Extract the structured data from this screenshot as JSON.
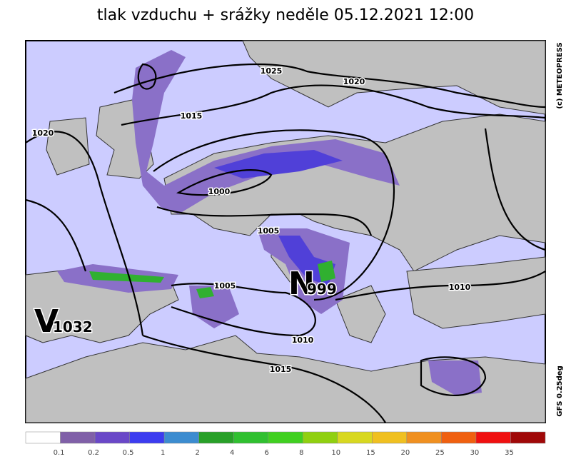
{
  "title": "tlak vzduchu + srážky  neděle 05.12.2021 12:00",
  "credit": "(c) METEOPRESS",
  "model": "GFS 0.25deg",
  "isobar_labels": [
    "1025",
    "1020",
    "1015",
    "1020",
    "1000",
    "1005",
    "1005",
    "1010",
    "1010",
    "1015"
  ],
  "pressure_centers": [
    {
      "letter": "V",
      "value": "1032"
    },
    {
      "letter": "N",
      "value": "999"
    }
  ],
  "legend": {
    "colors": [
      "#ffffff",
      "#8060a8",
      "#6a48c8",
      "#3c3cf0",
      "#3c8cd0",
      "#28a028",
      "#30c030",
      "#40d020",
      "#90d010",
      "#d8d820",
      "#f0c020",
      "#f09020",
      "#f06010",
      "#f01010",
      "#a00808"
    ],
    "labels": [
      "0.1",
      "0.2",
      "0.5",
      "1",
      "2",
      "4",
      "6",
      "8",
      "10",
      "15",
      "20",
      "25",
      "30",
      "35"
    ]
  }
}
